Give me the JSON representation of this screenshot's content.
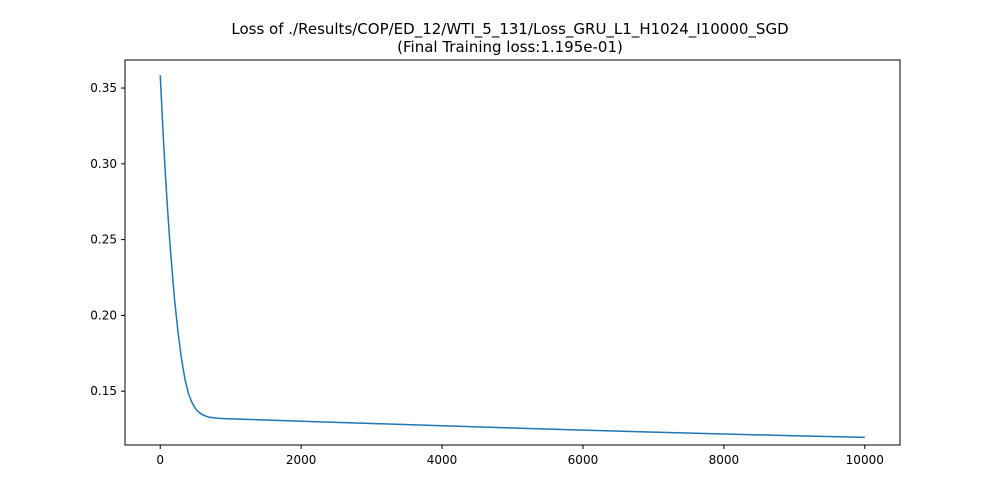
{
  "chart_data": {
    "type": "line",
    "title": "Loss of ./Results/COP/ED_12/WTI_5_131/Loss_GRU_L1_H1024_I10000_SGD",
    "subtitle": "(Final Training loss:1.195e-01)",
    "xlabel": "",
    "ylabel": "",
    "xlim": [
      -500,
      10500
    ],
    "ylim": [
      0.1145,
      0.3685
    ],
    "xticks": [
      0,
      2000,
      4000,
      6000,
      8000,
      10000
    ],
    "xtick_labels": [
      "0",
      "2000",
      "4000",
      "6000",
      "8000",
      "10000"
    ],
    "yticks": [
      0.15,
      0.2,
      0.25,
      0.3,
      0.35
    ],
    "ytick_labels": [
      "0.15",
      "0.20",
      "0.25",
      "0.30",
      "0.35"
    ],
    "grid": false,
    "legend": "none",
    "series": [
      {
        "color": "#1f77b4",
        "x": [
          0,
          25,
          50,
          75,
          100,
          125,
          150,
          175,
          200,
          250,
          300,
          350,
          400,
          450,
          500,
          550,
          600,
          650,
          700,
          800,
          900,
          1000,
          1500,
          2000,
          3000,
          4000,
          5000,
          6000,
          7000,
          8000,
          9000,
          10000
        ],
        "y": [
          0.3585,
          0.335,
          0.312,
          0.292,
          0.273,
          0.256,
          0.24,
          0.226,
          0.212,
          0.19,
          0.172,
          0.158,
          0.1485,
          0.1425,
          0.1385,
          0.136,
          0.1345,
          0.1335,
          0.1328,
          0.1322,
          0.1319,
          0.1317,
          0.131,
          0.1302,
          0.1287,
          0.1272,
          0.1257,
          0.1243,
          0.123,
          0.1218,
          0.1206,
          0.1195
        ]
      }
    ]
  }
}
